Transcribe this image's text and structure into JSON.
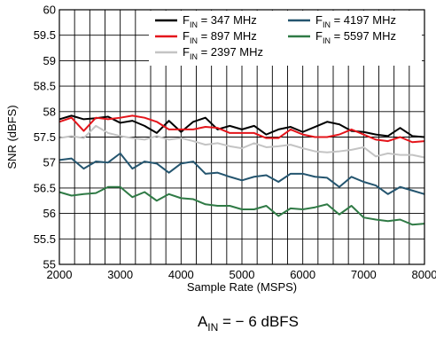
{
  "chart_data": {
    "type": "line",
    "title": "",
    "xlabel": "Sample Rate (MSPS)",
    "ylabel": "SNR (dBFS)",
    "xlim": [
      2000,
      8000
    ],
    "ylim": [
      55,
      60
    ],
    "x_ticks": [
      "2000",
      "3000",
      "4000",
      "5000",
      "6000",
      "7000",
      "8000"
    ],
    "y_ticks": [
      "55",
      "55.5",
      "56",
      "56.5",
      "57",
      "57.5",
      "58",
      "58.5",
      "59",
      "59.5",
      "60"
    ],
    "grid": true,
    "legend_position": "top-right",
    "x": [
      2000,
      2200,
      2400,
      2600,
      2800,
      3000,
      3200,
      3400,
      3600,
      3800,
      4000,
      4200,
      4400,
      4600,
      4800,
      5000,
      5200,
      5400,
      5600,
      5800,
      6000,
      6200,
      6400,
      6600,
      6800,
      7000,
      7200,
      7400,
      7600,
      7800,
      8000
    ],
    "series": [
      {
        "name_main": "F",
        "name_sub": "IN",
        "name_rest": " = 347 MHz",
        "color": "#000000",
        "values": [
          57.85,
          57.92,
          57.85,
          57.87,
          57.9,
          57.78,
          57.82,
          57.72,
          57.58,
          57.82,
          57.6,
          57.8,
          57.88,
          57.65,
          57.72,
          57.65,
          57.72,
          57.55,
          57.65,
          57.7,
          57.6,
          57.7,
          57.8,
          57.75,
          57.62,
          57.6,
          57.55,
          57.52,
          57.68,
          57.52,
          57.5
        ]
      },
      {
        "name_main": "F",
        "name_sub": "IN",
        "name_rest": " = 897 MHz",
        "color": "#e4151b",
        "values": [
          57.8,
          57.88,
          57.62,
          57.88,
          57.85,
          57.88,
          57.92,
          57.88,
          57.8,
          57.65,
          57.65,
          57.65,
          57.7,
          57.68,
          57.58,
          57.58,
          57.58,
          57.48,
          57.48,
          57.65,
          57.55,
          57.5,
          57.5,
          57.55,
          57.65,
          57.55,
          57.45,
          57.42,
          57.5,
          57.4,
          57.42
        ]
      },
      {
        "name_main": "F",
        "name_sub": "IN",
        "name_rest": " = 2397 MHz",
        "color": "#c4c4c4",
        "values": [
          57.48,
          57.52,
          57.48,
          57.72,
          57.58,
          57.52,
          57.48,
          57.45,
          57.52,
          57.45,
          57.48,
          57.42,
          57.35,
          57.38,
          57.32,
          57.28,
          57.38,
          57.3,
          57.32,
          57.35,
          57.28,
          57.22,
          57.2,
          57.22,
          57.25,
          57.3,
          57.12,
          57.18,
          57.15,
          57.15,
          57.1
        ]
      },
      {
        "name_main": "F",
        "name_sub": "IN",
        "name_rest": " = 4197 MHz",
        "color": "#24556f",
        "values": [
          57.05,
          57.08,
          56.88,
          57.02,
          57.0,
          57.18,
          56.88,
          57.02,
          56.98,
          56.8,
          56.98,
          57.02,
          56.78,
          56.8,
          56.72,
          56.65,
          56.72,
          56.75,
          56.62,
          56.78,
          56.78,
          56.72,
          56.7,
          56.52,
          56.72,
          56.62,
          56.55,
          56.38,
          56.52,
          56.45,
          56.38
        ]
      },
      {
        "name_main": "F",
        "name_sub": "IN",
        "name_rest": " = 5597 MHz",
        "color": "#2f7a45",
        "values": [
          56.42,
          56.35,
          56.38,
          56.4,
          56.52,
          56.52,
          56.32,
          56.42,
          56.25,
          56.38,
          56.3,
          56.28,
          56.18,
          56.15,
          56.15,
          56.08,
          56.08,
          56.15,
          55.95,
          56.1,
          56.08,
          56.12,
          56.18,
          55.98,
          56.15,
          55.92,
          55.88,
          55.85,
          55.88,
          55.78,
          55.8
        ]
      }
    ]
  },
  "caption": {
    "main": "A",
    "sub": "IN",
    "rest": " = − 6 dBFS"
  }
}
